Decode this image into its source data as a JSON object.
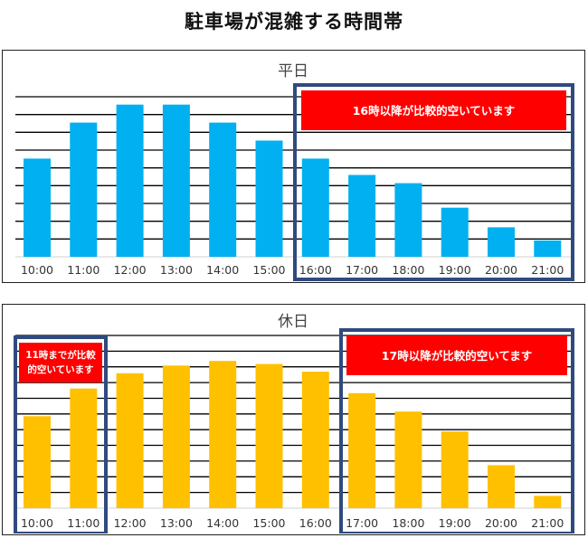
{
  "page_title": "駐車場が混雑する時間帯",
  "colors": {
    "weekday_bar": "#00B0F0",
    "holiday_bar": "#FFC000",
    "callout_bg": "#FF0000",
    "highlight_border": "#2F4A7F",
    "gridline": "#000000"
  },
  "chart_data": [
    {
      "type": "bar",
      "title": "平日",
      "categories": [
        "10:00",
        "11:00",
        "12:00",
        "13:00",
        "14:00",
        "15:00",
        "16:00",
        "17:00",
        "18:00",
        "19:00",
        "20:00",
        "21:00"
      ],
      "values": [
        6.0,
        8.2,
        9.3,
        9.3,
        8.2,
        7.1,
        6.0,
        5.0,
        4.5,
        3.0,
        1.8,
        1.0
      ],
      "ylim": [
        0,
        10
      ],
      "gridlines": 9,
      "xlabel": "",
      "ylabel": "",
      "annotations": [
        {
          "text": "16時以降が比較的空いています",
          "from_category": "16:00",
          "to_category": "21:00"
        }
      ]
    },
    {
      "type": "bar",
      "title": "休日",
      "categories": [
        "10:00",
        "11:00",
        "12:00",
        "13:00",
        "14:00",
        "15:00",
        "16:00",
        "17:00",
        "18:00",
        "19:00",
        "20:00",
        "21:00"
      ],
      "values": [
        6.0,
        7.8,
        8.8,
        9.3,
        9.6,
        9.4,
        8.9,
        7.5,
        6.3,
        5.0,
        2.8,
        0.8
      ],
      "ylim": [
        0,
        11.5
      ],
      "gridlines": 11,
      "xlabel": "",
      "ylabel": "",
      "annotations": [
        {
          "text": "11時までが比較的空いています",
          "lines": [
            "11時までが比較",
            "的空いています"
          ],
          "from_category": "10:00",
          "to_category": "11:00"
        },
        {
          "text": "17時以降が比較的空いてます",
          "from_category": "17:00",
          "to_category": "21:00"
        }
      ]
    }
  ]
}
